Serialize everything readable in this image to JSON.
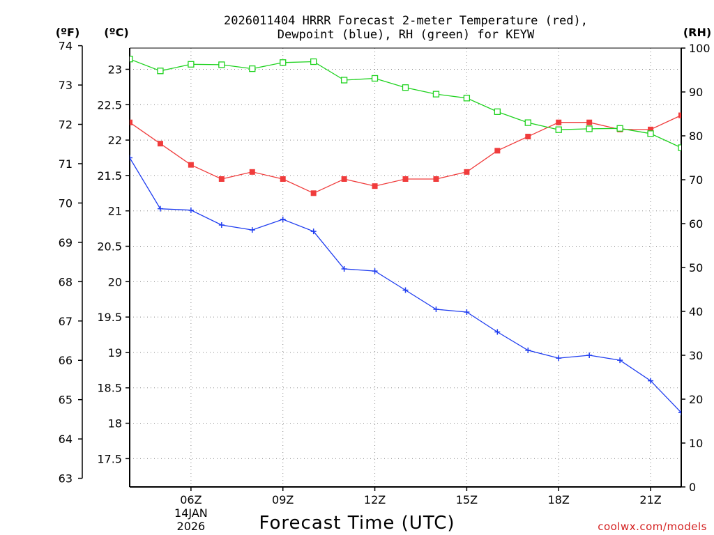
{
  "chart_data": {
    "type": "line",
    "title_line1": "2026011404 HRRR Forecast 2-meter Temperature (red),",
    "title_line2": "Dewpoint (blue), RH (green) for KEYW",
    "xlabel": "Forecast Time (UTC)",
    "credit": "coolwx.com/models",
    "unit_left_f": "(ºF)",
    "unit_left_c": "(ºC)",
    "unit_right": "(RH)",
    "x_hours": [
      4,
      5,
      6,
      7,
      8,
      9,
      10,
      11,
      12,
      13,
      14,
      15,
      16,
      17,
      18,
      19,
      20,
      21,
      22
    ],
    "xlim": [
      4,
      22
    ],
    "x_ticks": [
      {
        "hour": 6,
        "label": "06Z",
        "sub1": "14JAN",
        "sub2": "2026"
      },
      {
        "hour": 9,
        "label": "09Z"
      },
      {
        "hour": 12,
        "label": "12Z"
      },
      {
        "hour": 15,
        "label": "15Z"
      },
      {
        "hour": 18,
        "label": "18Z"
      },
      {
        "hour": 21,
        "label": "21Z"
      }
    ],
    "celsius_axis": {
      "lim": [
        17.1,
        23.3
      ],
      "ticks": [
        "17.5",
        "18",
        "18.5",
        "19",
        "19.5",
        "20",
        "20.5",
        "21",
        "21.5",
        "22",
        "22.5",
        "23"
      ]
    },
    "fahrenheit_axis": {
      "lim": [
        62.78,
        73.94
      ],
      "ticks": [
        "63",
        "64",
        "65",
        "66",
        "67",
        "68",
        "69",
        "70",
        "71",
        "72",
        "73",
        "74"
      ]
    },
    "rh_axis": {
      "lim": [
        0,
        100
      ],
      "ticks": [
        "0",
        "10",
        "20",
        "30",
        "40",
        "50",
        "60",
        "70",
        "80",
        "90",
        "100"
      ]
    },
    "series": [
      {
        "name": "Temperature",
        "axis": "celsius",
        "color": "#f03c3c",
        "marker": "filled-square",
        "values": [
          22.25,
          21.95,
          21.65,
          21.45,
          21.55,
          21.45,
          21.25,
          21.45,
          21.35,
          21.45,
          21.45,
          21.55,
          21.85,
          22.05,
          22.25,
          22.25,
          22.15,
          22.15,
          22.35
        ]
      },
      {
        "name": "Dewpoint",
        "axis": "celsius",
        "color": "#1e3cf0",
        "marker": "plus",
        "values": [
          21.75,
          21.03,
          21.01,
          20.8,
          20.73,
          20.88,
          20.71,
          20.18,
          20.15,
          19.88,
          19.61,
          19.57,
          19.29,
          19.03,
          18.92,
          18.96,
          18.89,
          18.6,
          18.15
        ]
      },
      {
        "name": "RH",
        "axis": "rh",
        "color": "#1ed21e",
        "marker": "open-square",
        "values": [
          97.5,
          94.8,
          96.3,
          96.2,
          95.3,
          96.7,
          96.9,
          92.7,
          93.1,
          91.0,
          89.5,
          88.6,
          85.5,
          83.0,
          81.4,
          81.6,
          81.7,
          80.5,
          77.3
        ]
      }
    ]
  }
}
